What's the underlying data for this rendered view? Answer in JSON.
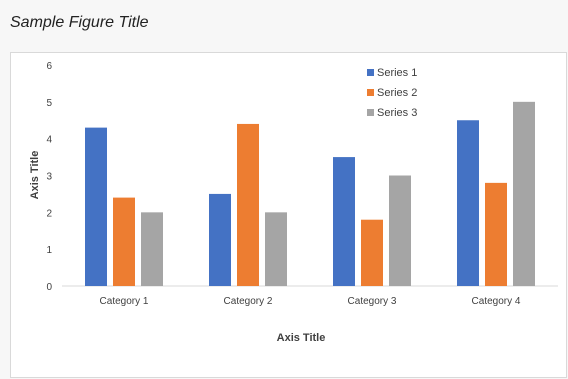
{
  "figure_title": "Sample Figure Title",
  "chart_data": {
    "type": "bar",
    "categories": [
      "Category 1",
      "Category 2",
      "Category 3",
      "Category 4"
    ],
    "series": [
      {
        "name": "Series 1",
        "color": "#4472c4",
        "values": [
          4.3,
          2.5,
          3.5,
          4.5
        ]
      },
      {
        "name": "Series 2",
        "color": "#ed7d31",
        "values": [
          2.4,
          4.4,
          1.8,
          2.8
        ]
      },
      {
        "name": "Series 3",
        "color": "#a5a5a5",
        "values": [
          2.0,
          2.0,
          3.0,
          5.0
        ]
      }
    ],
    "xlabel": "Axis Title",
    "ylabel": "Axis Title",
    "ylim": [
      0,
      6
    ],
    "yticks": [
      "0",
      "1",
      "2",
      "3",
      "4",
      "5",
      "6"
    ],
    "grid": false,
    "legend_position": "top-right"
  }
}
